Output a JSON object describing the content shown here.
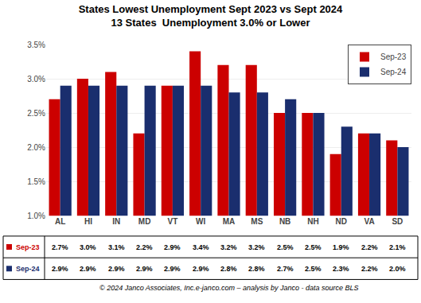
{
  "chart_data": {
    "type": "bar",
    "title": "States Lowest Unemployment Sept 2023 vs Sept 2024",
    "subtitle": "13 States  Unemployment 3.0% or Lower",
    "categories": [
      "AL",
      "HI",
      "IN",
      "MD",
      "VT",
      "WI",
      "MA",
      "MS",
      "NB",
      "NH",
      "ND",
      "VA",
      "SD"
    ],
    "series": [
      {
        "name": "Sep-23",
        "color": "#cc0000",
        "values": [
          2.7,
          3.0,
          3.1,
          2.2,
          2.9,
          3.4,
          3.2,
          3.2,
          2.5,
          2.5,
          1.9,
          2.2,
          2.1
        ],
        "value_labels": [
          "2.7%",
          "3.0%",
          "3.1%",
          "2.2%",
          "2.9%",
          "3.4%",
          "3.2%",
          "3.2%",
          "2.5%",
          "2.5%",
          "1.9%",
          "2.2%",
          "2.1%"
        ]
      },
      {
        "name": "Sep-24",
        "color": "#1a2e6e",
        "values": [
          2.9,
          2.9,
          2.9,
          2.9,
          2.9,
          2.9,
          2.8,
          2.8,
          2.7,
          2.5,
          2.3,
          2.2,
          2.0
        ],
        "value_labels": [
          "2.9%",
          "2.9%",
          "2.9%",
          "2.9%",
          "2.9%",
          "2.9%",
          "2.8%",
          "2.8%",
          "2.7%",
          "2.5%",
          "2.3%",
          "2.2%",
          "2.0%"
        ]
      }
    ],
    "ylim": [
      1.0,
      3.5
    ],
    "yticks": [
      {
        "value": 1.0,
        "label": "1.0%"
      },
      {
        "value": 1.5,
        "label": "1.5%"
      },
      {
        "value": 2.0,
        "label": "2.0%"
      },
      {
        "value": 2.5,
        "label": "2.5%"
      },
      {
        "value": 3.0,
        "label": "3.0%"
      },
      {
        "value": 3.5,
        "label": "3.5%"
      }
    ],
    "grid": true,
    "legend": "upper right",
    "annotations": [
      "© 2024 Janco Associates, Inc.e-janco.com – analysis by Janco - data source BLS"
    ]
  }
}
